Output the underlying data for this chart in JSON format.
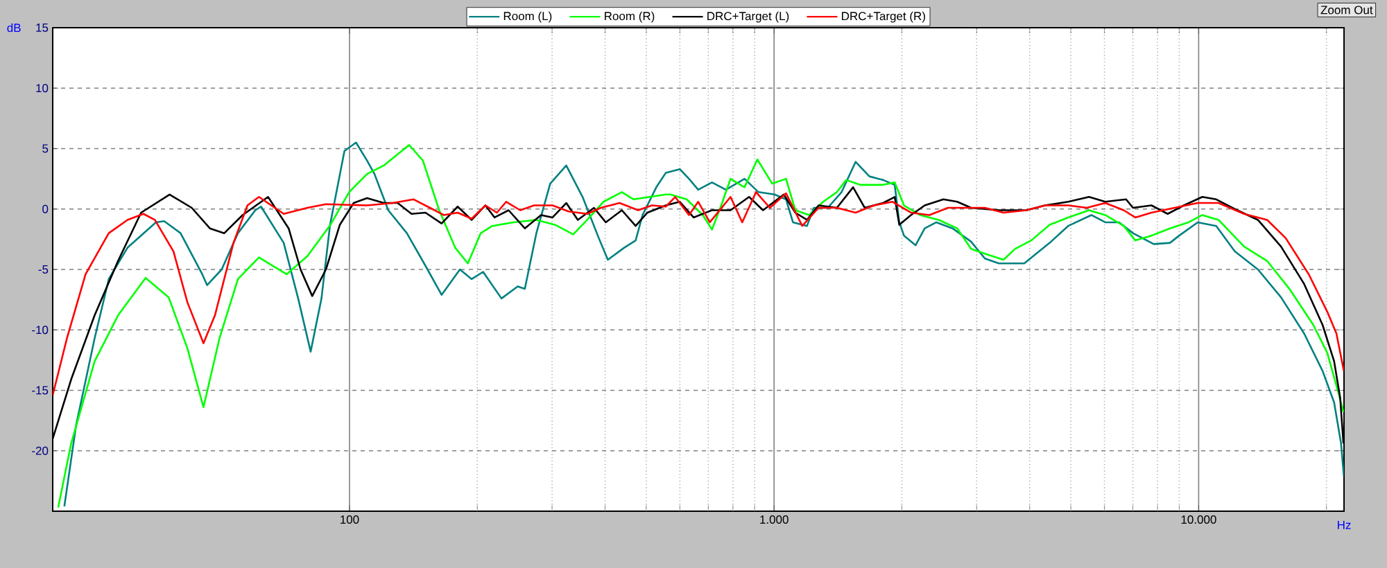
{
  "chart_data": {
    "type": "line",
    "xlabel": "Hz",
    "ylabel": "dB",
    "log": "x",
    "grid": true,
    "legend": "top",
    "marker": "none",
    "line_style": "solid",
    "xlim": [
      20,
      22000
    ],
    "ylim": [
      -25,
      15
    ],
    "xticks": [
      {
        "value": 100,
        "label": "100"
      },
      {
        "value": 200,
        "label": null
      },
      {
        "value": 300,
        "label": null
      },
      {
        "value": 400,
        "label": null
      },
      {
        "value": 500,
        "label": null
      },
      {
        "value": 600,
        "label": null
      },
      {
        "value": 700,
        "label": null
      },
      {
        "value": 800,
        "label": null
      },
      {
        "value": 900,
        "label": null
      },
      {
        "value": 1000,
        "label": "1.000"
      },
      {
        "value": 2000,
        "label": null
      },
      {
        "value": 3000,
        "label": null
      },
      {
        "value": 4000,
        "label": null
      },
      {
        "value": 5000,
        "label": null
      },
      {
        "value": 6000,
        "label": null
      },
      {
        "value": 7000,
        "label": null
      },
      {
        "value": 8000,
        "label": null
      },
      {
        "value": 9000,
        "label": null
      },
      {
        "value": 10000,
        "label": "10.000"
      },
      {
        "value": 20000,
        "label": null
      }
    ],
    "yticks": [
      15,
      10,
      5,
      0,
      -5,
      -10,
      -15,
      -20
    ],
    "annotations": [
      "Zoom Out"
    ],
    "series": [
      {
        "name": "Room (L)",
        "color": "#008080",
        "x": [
          21.3,
          22.7,
          25.1,
          27.1,
          30,
          35,
          36.6,
          40,
          45,
          46.2,
          50,
          54.6,
          60,
          61.9,
          70,
          75.7,
          81,
          85.9,
          90,
          97.3,
          103.6,
          110,
          114.5,
          123.4,
          136.5,
          151,
          164.8,
          182,
          194,
          206.4,
          228,
          249,
          258.8,
          275.5,
          297,
          324,
          354,
          386.5,
          406,
          443.6,
          472,
          490,
          528,
          556,
          599.8,
          630.4,
          662.7,
          714.1,
          770.2,
          851.8,
          918.8,
          1002.5,
          1067,
          1108,
          1195,
          1241,
          1338,
          1442,
          1556,
          1677,
          1807,
          1924,
          1972,
          2023,
          2154,
          2264,
          2411,
          2633,
          2911,
          3138,
          3384,
          3884,
          4458,
          4929,
          5589,
          6026,
          6496,
          7004,
          7841,
          8559,
          8999,
          9949,
          11000,
          12162,
          13790,
          15630,
          17720,
          19590,
          20850,
          21650,
          21980
        ],
        "values": [
          -24.6,
          -17.9,
          -10.7,
          -5.8,
          -3.2,
          -1.1,
          -1.0,
          -2.0,
          -5.4,
          -6.3,
          -5.0,
          -2.0,
          -0.1,
          0.2,
          -2.8,
          -7.4,
          -11.8,
          -7.4,
          -1.3,
          4.8,
          5.5,
          4.0,
          2.9,
          -0.1,
          -2.0,
          -4.7,
          -7.1,
          -5.0,
          -5.8,
          -5.2,
          -7.4,
          -6.4,
          -6.6,
          -2.0,
          2.1,
          3.6,
          1.0,
          -2.4,
          -4.2,
          -3.2,
          -2.6,
          -0.5,
          1.8,
          3.0,
          3.3,
          2.5,
          1.6,
          2.2,
          1.6,
          2.5,
          1.4,
          1.2,
          0.8,
          -1.1,
          -1.4,
          0.1,
          0.1,
          1.4,
          3.9,
          2.7,
          2.4,
          2.0,
          -1.1,
          -2.2,
          -3.0,
          -1.6,
          -1.1,
          -1.6,
          -2.7,
          -4.1,
          -4.5,
          -4.5,
          -2.8,
          -1.4,
          -0.5,
          -1.1,
          -1.1,
          -2.0,
          -2.9,
          -2.8,
          -2.2,
          -1.1,
          -1.4,
          -3.5,
          -5.0,
          -7.3,
          -10.3,
          -13.4,
          -16.0,
          -19.4,
          -22.1
        ]
      },
      {
        "name": "Room (R)",
        "color": "#00ff00",
        "x": [
          20.6,
          22.1,
          25.1,
          28.5,
          33.1,
          37.5,
          41.5,
          45.3,
          49.4,
          54.6,
          61.2,
          71.1,
          79.6,
          90.2,
          99.8,
          110,
          120.4,
          138.2,
          148.9,
          162.7,
          177.4,
          190,
          203.7,
          217,
          243,
          275.5,
          304.6,
          336.5,
          363,
          396.5,
          438,
          467,
          509,
          556,
          570.3,
          622.6,
          679.6,
          714.1,
          751,
          789.9,
          851.8,
          913.4,
          990,
          1067,
          1122,
          1210,
          1305,
          1406,
          1479,
          1595,
          1807,
          1924,
          2023,
          2208,
          2443,
          2700,
          2911,
          3138,
          3470,
          3694,
          4033,
          4458,
          4929,
          5519,
          6026,
          6662,
          7092,
          7744,
          8559,
          9462,
          10202,
          11138,
          12790,
          14500,
          16440,
          18630,
          20090,
          21380,
          21930
        ],
        "values": [
          -24.7,
          -19.4,
          -12.6,
          -8.8,
          -5.7,
          -7.3,
          -11.5,
          -16.4,
          -10.7,
          -5.8,
          -4.0,
          -5.4,
          -3.9,
          -1.3,
          1.4,
          2.9,
          3.6,
          5.3,
          4.0,
          -0.1,
          -3.2,
          -4.5,
          -2.0,
          -1.4,
          -1.1,
          -0.9,
          -1.3,
          -2.1,
          -0.9,
          0.6,
          1.4,
          0.8,
          1.0,
          1.2,
          1.2,
          0.8,
          -0.5,
          -1.7,
          0.3,
          2.5,
          1.8,
          4.1,
          2.1,
          2.5,
          -0.1,
          -0.5,
          0.6,
          1.4,
          2.4,
          2.0,
          2.0,
          2.2,
          0.3,
          -0.5,
          -0.9,
          -1.6,
          -3.3,
          -3.7,
          -4.2,
          -3.3,
          -2.6,
          -1.3,
          -0.7,
          -0.1,
          -0.5,
          -1.4,
          -2.6,
          -2.2,
          -1.6,
          -1.1,
          -0.5,
          -0.9,
          -3.1,
          -4.3,
          -6.7,
          -9.6,
          -11.9,
          -15.3,
          -16.8
        ]
      },
      {
        "name": "DRC+Target (L)",
        "color": "#000000",
        "x": [
          20,
          22.1,
          25.1,
          28.5,
          32.3,
          37.7,
          42.5,
          46.9,
          50.7,
          56,
          64.3,
          71.9,
          76.7,
          81.7,
          88,
          94.9,
          102.3,
          110,
          120.4,
          129.8,
          140,
          151,
          164.8,
          179.8,
          194,
          209,
          219.6,
          237,
          258.8,
          282.6,
          300.8,
          324,
          345,
          376.6,
          401.4,
          438,
          472,
          503,
          556,
          599.8,
          646.4,
          714.1,
          789.9,
          873.3,
          942,
          1054,
          1122,
          1195,
          1273,
          1406,
          1535,
          1635,
          1807,
          1924,
          1972,
          2101,
          2264,
          2505,
          2700,
          2911,
          3384,
          3933,
          4347,
          4929,
          5519,
          6026,
          6746,
          7004,
          7744,
          8453,
          9228,
          10202,
          11000,
          12162,
          13790,
          15630,
          17720,
          19590,
          20850,
          21540,
          21930
        ],
        "values": [
          -19.0,
          -14.1,
          -8.8,
          -4.3,
          -0.3,
          1.2,
          0.1,
          -1.6,
          -2.0,
          -0.5,
          1.0,
          -1.6,
          -5.0,
          -7.2,
          -5.0,
          -1.3,
          0.5,
          0.9,
          0.5,
          0.5,
          -0.4,
          -0.3,
          -1.2,
          0.2,
          -0.9,
          0.3,
          -0.7,
          -0.1,
          -1.6,
          -0.5,
          -0.7,
          0.5,
          -0.9,
          0.1,
          -1.1,
          -0.1,
          -1.4,
          -0.3,
          0.3,
          0.6,
          -0.7,
          -0.1,
          -0.1,
          1.0,
          -0.1,
          1.2,
          -0.3,
          -0.9,
          0.3,
          0.1,
          1.8,
          0.1,
          0.5,
          1.0,
          -1.3,
          -0.5,
          0.3,
          0.8,
          0.6,
          0.1,
          -0.1,
          -0.1,
          0.3,
          0.6,
          1.0,
          0.6,
          0.8,
          0.1,
          0.3,
          -0.4,
          0.3,
          1.0,
          0.8,
          0.0,
          -0.9,
          -3.1,
          -6.2,
          -9.6,
          -12.6,
          -15.6,
          -19.4
        ]
      },
      {
        "name": "DRC+Target (R)",
        "color": "#ff0000",
        "x": [
          20,
          21.6,
          23.9,
          27.1,
          30,
          32.7,
          34.8,
          38.5,
          41.5,
          45.3,
          48.2,
          53.3,
          57.5,
          61.2,
          70,
          79.6,
          88,
          110,
          126.6,
          141.6,
          154.7,
          166.7,
          179.8,
          194,
          209,
          222.4,
          233.9,
          252.4,
          272,
          300.8,
          328,
          363,
          391,
          432.7,
          478.3,
          515.5,
          556,
          584.8,
          630.4,
          662.7,
          705.9,
          789.9,
          841.4,
          906.7,
          977.8,
          1067,
          1165,
          1273,
          1406,
          1556,
          1719,
          1901,
          2101,
          2321,
          2568,
          2911,
          3138,
          3470,
          3933,
          4347,
          4929,
          5450,
          6026,
          6662,
          7092,
          7744,
          8776,
          9949,
          11138,
          12790,
          14500,
          16030,
          18170,
          20090,
          21110,
          21980
        ],
        "values": [
          -15.4,
          -10.7,
          -5.4,
          -2.0,
          -0.9,
          -0.4,
          -0.9,
          -3.5,
          -7.7,
          -11.1,
          -8.8,
          -2.8,
          0.3,
          1.0,
          -0.4,
          0.1,
          0.4,
          0.3,
          0.5,
          0.8,
          0.1,
          -0.5,
          -0.3,
          -0.8,
          0.3,
          -0.3,
          0.6,
          -0.1,
          0.3,
          0.3,
          -0.2,
          -0.4,
          0.1,
          0.5,
          -0.1,
          0.3,
          0.2,
          1.0,
          -0.5,
          0.6,
          -1.1,
          1.0,
          -1.1,
          1.4,
          0.1,
          1.3,
          -1.4,
          0.1,
          0.1,
          -0.3,
          0.3,
          0.6,
          -0.3,
          -0.5,
          0.1,
          0.1,
          0.1,
          -0.3,
          -0.1,
          0.3,
          0.3,
          0.1,
          0.5,
          -0.1,
          -0.7,
          -0.3,
          0.1,
          0.5,
          0.5,
          -0.4,
          -0.9,
          -2.4,
          -5.4,
          -8.5,
          -10.3,
          -13.4
        ]
      }
    ]
  }
}
